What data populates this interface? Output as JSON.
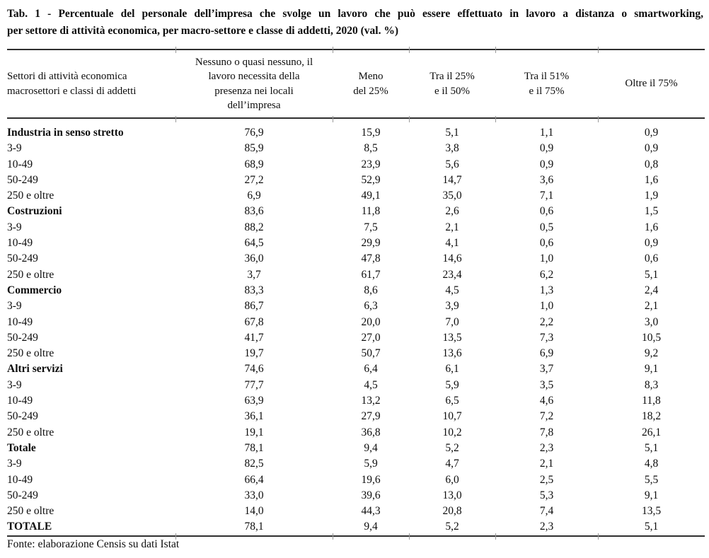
{
  "title": {
    "line1": "Tab. 1 -  Percentuale del personale dell’impresa che svolge un lavoro che può essere effettuato in lavoro a distanza o smartworking,",
    "line2": "per settore di attività economica, per macro-settore e classe di addetti, 2020 (val. %)"
  },
  "table": {
    "columns": [
      {
        "label": "Settori di attività  economica\nmacrosettori e classi di addetti"
      },
      {
        "label": "Nessuno o quasi nessuno, il\nlavoro necessita della\npresenza nei locali\ndell’impresa"
      },
      {
        "label": "Meno\ndel 25%"
      },
      {
        "label": "Tra il 25%\ne il 50%"
      },
      {
        "label": "Tra il 51%\ne il 75%"
      },
      {
        "label": "Oltre il 75%"
      }
    ],
    "rows": [
      {
        "label": "Industria in senso stretto",
        "bold": true,
        "values": [
          "76,9",
          "15,9",
          "5,1",
          "1,1",
          "0,9"
        ]
      },
      {
        "label": "3-9",
        "bold": false,
        "values": [
          "85,9",
          "8,5",
          "3,8",
          "0,9",
          "0,9"
        ]
      },
      {
        "label": "10-49",
        "bold": false,
        "values": [
          "68,9",
          "23,9",
          "5,6",
          "0,9",
          "0,8"
        ]
      },
      {
        "label": "50-249",
        "bold": false,
        "values": [
          "27,2",
          "52,9",
          "14,7",
          "3,6",
          "1,6"
        ]
      },
      {
        "label": "250 e oltre",
        "bold": false,
        "values": [
          "6,9",
          "49,1",
          "35,0",
          "7,1",
          "1,9"
        ]
      },
      {
        "label": "Costruzioni",
        "bold": true,
        "values": [
          "83,6",
          "11,8",
          "2,6",
          "0,6",
          "1,5"
        ]
      },
      {
        "label": "3-9",
        "bold": false,
        "values": [
          "88,2",
          "7,5",
          "2,1",
          "0,5",
          "1,6"
        ]
      },
      {
        "label": "10-49",
        "bold": false,
        "values": [
          "64,5",
          "29,9",
          "4,1",
          "0,6",
          "0,9"
        ]
      },
      {
        "label": "50-249",
        "bold": false,
        "values": [
          "36,0",
          "47,8",
          "14,6",
          "1,0",
          "0,6"
        ]
      },
      {
        "label": "250 e oltre",
        "bold": false,
        "values": [
          "3,7",
          "61,7",
          "23,4",
          "6,2",
          "5,1"
        ]
      },
      {
        "label": "Commercio",
        "bold": true,
        "values": [
          "83,3",
          "8,6",
          "4,5",
          "1,3",
          "2,4"
        ]
      },
      {
        "label": "3-9",
        "bold": false,
        "values": [
          "86,7",
          "6,3",
          "3,9",
          "1,0",
          "2,1"
        ]
      },
      {
        "label": "10-49",
        "bold": false,
        "values": [
          "67,8",
          "20,0",
          "7,0",
          "2,2",
          "3,0"
        ]
      },
      {
        "label": "50-249",
        "bold": false,
        "values": [
          "41,7",
          "27,0",
          "13,5",
          "7,3",
          "10,5"
        ]
      },
      {
        "label": "250 e oltre",
        "bold": false,
        "values": [
          "19,7",
          "50,7",
          "13,6",
          "6,9",
          "9,2"
        ]
      },
      {
        "label": "Altri servizi",
        "bold": true,
        "values": [
          "74,6",
          "6,4",
          "6,1",
          "3,7",
          "9,1"
        ]
      },
      {
        "label": "3-9",
        "bold": false,
        "values": [
          "77,7",
          "4,5",
          "5,9",
          "3,5",
          "8,3"
        ]
      },
      {
        "label": "10-49",
        "bold": false,
        "values": [
          "63,9",
          "13,2",
          "6,5",
          "4,6",
          "11,8"
        ]
      },
      {
        "label": "50-249",
        "bold": false,
        "values": [
          "36,1",
          "27,9",
          "10,7",
          "7,2",
          "18,2"
        ]
      },
      {
        "label": "250 e oltre",
        "bold": false,
        "values": [
          "19,1",
          "36,8",
          "10,2",
          "7,8",
          "26,1"
        ]
      },
      {
        "label": "Totale",
        "bold": true,
        "values": [
          "78,1",
          "9,4",
          "5,2",
          "2,3",
          "5,1"
        ]
      },
      {
        "label": "3-9",
        "bold": false,
        "values": [
          "82,5",
          "5,9",
          "4,7",
          "2,1",
          "4,8"
        ]
      },
      {
        "label": "10-49",
        "bold": false,
        "values": [
          "66,4",
          "19,6",
          "6,0",
          "2,5",
          "5,5"
        ]
      },
      {
        "label": "50-249",
        "bold": false,
        "values": [
          "33,0",
          "39,6",
          "13,0",
          "5,3",
          "9,1"
        ]
      },
      {
        "label": "250 e oltre",
        "bold": false,
        "values": [
          "14,0",
          "44,3",
          "20,8",
          "7,4",
          "13,5"
        ]
      },
      {
        "label": "TOTALE",
        "bold": true,
        "values": [
          "78,1",
          "9,4",
          "5,2",
          "2,3",
          "5,1"
        ]
      }
    ]
  },
  "source": "Fonte: elaborazione Censis su dati Istat"
}
